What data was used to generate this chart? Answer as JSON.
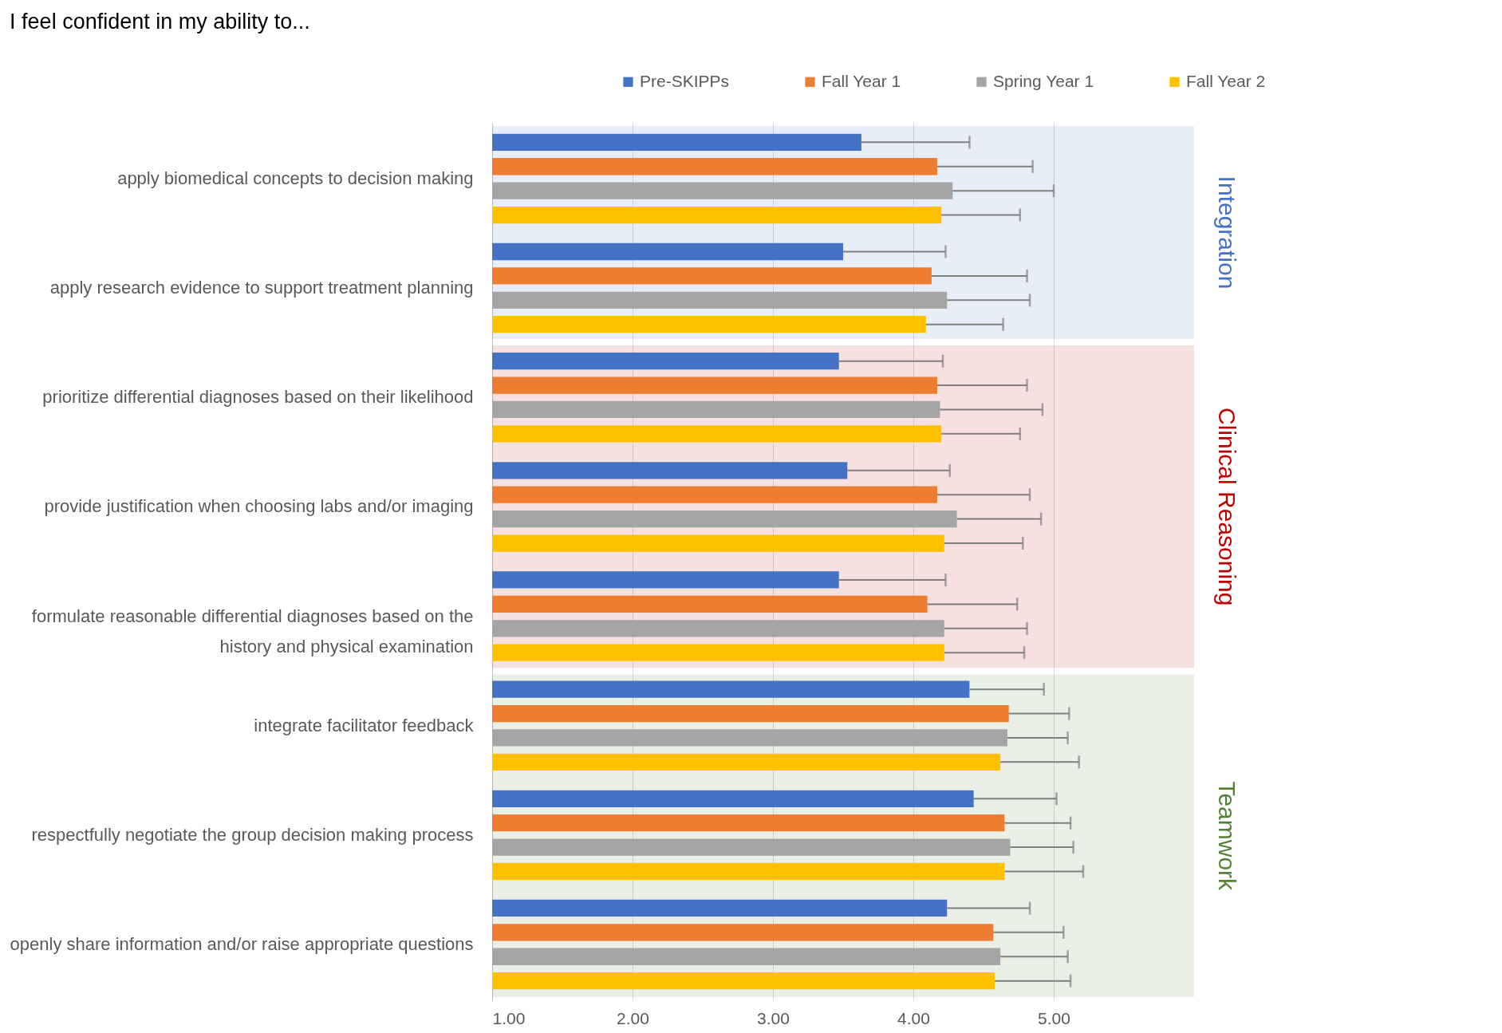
{
  "chart_data": {
    "type": "bar",
    "orientation": "horizontal",
    "title": "I feel confident in my ability to...",
    "categories": [
      "apply biomedical concepts to decision making",
      "apply research evidence to support treatment planning",
      "prioritize differential diagnoses based on their likelihood",
      "provide justification when choosing labs and/or imaging",
      "formulate reasonable differential diagnoses based on the history and physical examination",
      "integrate facilitator feedback",
      "respectfully negotiate the group decision making process",
      "openly share information and/or raise appropriate questions"
    ],
    "series": [
      {
        "name": "Pre-SKIPPs",
        "color": "#4472c4",
        "values": [
          3.63,
          3.5,
          3.47,
          3.53,
          3.47,
          4.4,
          4.43,
          4.24
        ],
        "errors": [
          [
            3.63,
            4.4
          ],
          [
            3.5,
            4.23
          ],
          [
            3.47,
            4.21
          ],
          [
            3.53,
            4.26
          ],
          [
            3.47,
            4.23
          ],
          [
            4.4,
            4.93
          ],
          [
            4.43,
            5.02
          ],
          [
            4.24,
            4.83
          ]
        ]
      },
      {
        "name": "Fall Year 1",
        "color": "#ed7d31",
        "values": [
          4.17,
          4.13,
          4.17,
          4.17,
          4.1,
          4.68,
          4.65,
          4.57
        ],
        "errors": [
          [
            4.17,
            4.85
          ],
          [
            4.13,
            4.81
          ],
          [
            4.17,
            4.81
          ],
          [
            4.17,
            4.83
          ],
          [
            4.1,
            4.74
          ],
          [
            4.68,
            5.11
          ],
          [
            4.65,
            5.12
          ],
          [
            4.57,
            5.07
          ]
        ]
      },
      {
        "name": "Spring Year 1",
        "color": "#a5a5a5",
        "values": [
          4.28,
          4.24,
          4.19,
          4.31,
          4.22,
          4.67,
          4.69,
          4.62
        ],
        "errors": [
          [
            4.28,
            5.0
          ],
          [
            4.24,
            4.83
          ],
          [
            4.19,
            4.92
          ],
          [
            4.31,
            4.91
          ],
          [
            4.22,
            4.81
          ],
          [
            4.67,
            5.1
          ],
          [
            4.69,
            5.14
          ],
          [
            4.62,
            5.1
          ]
        ]
      },
      {
        "name": "Fall Year 2",
        "color": "#ffc000",
        "values": [
          4.2,
          4.09,
          4.2,
          4.22,
          4.22,
          4.62,
          4.65,
          4.58
        ],
        "errors": [
          [
            4.2,
            4.76
          ],
          [
            4.09,
            4.64
          ],
          [
            4.2,
            4.76
          ],
          [
            4.22,
            4.78
          ],
          [
            4.22,
            4.79
          ],
          [
            4.62,
            5.18
          ],
          [
            4.65,
            5.21
          ],
          [
            4.58,
            5.12
          ]
        ]
      }
    ],
    "xlim": [
      1,
      6
    ],
    "xticks": [
      {
        "value": 1,
        "label": "1.00"
      },
      {
        "value": 2,
        "label": "2.00"
      },
      {
        "value": 3,
        "label": "3.00"
      },
      {
        "value": 4,
        "label": "4.00"
      },
      {
        "value": 5,
        "label": "5.00"
      }
    ],
    "grid": "x",
    "legend": "top right",
    "bands": [
      {
        "axis": "y",
        "from": "apply biomedical concepts to decision making",
        "to": "apply research evidence to support treatment planning",
        "label": "Integration",
        "color": "#4472c4"
      },
      {
        "axis": "y",
        "from": "prioritize differential diagnoses based on their likelihood",
        "to": "formulate reasonable differential diagnoses based on the history and physical examination",
        "label": "Clinical Reasoning",
        "color": "#c00000"
      },
      {
        "axis": "y",
        "from": "integrate facilitator feedback",
        "to": "openly share information and/or raise appropriate questions",
        "label": "Teamwork",
        "color": "#548235"
      }
    ]
  }
}
